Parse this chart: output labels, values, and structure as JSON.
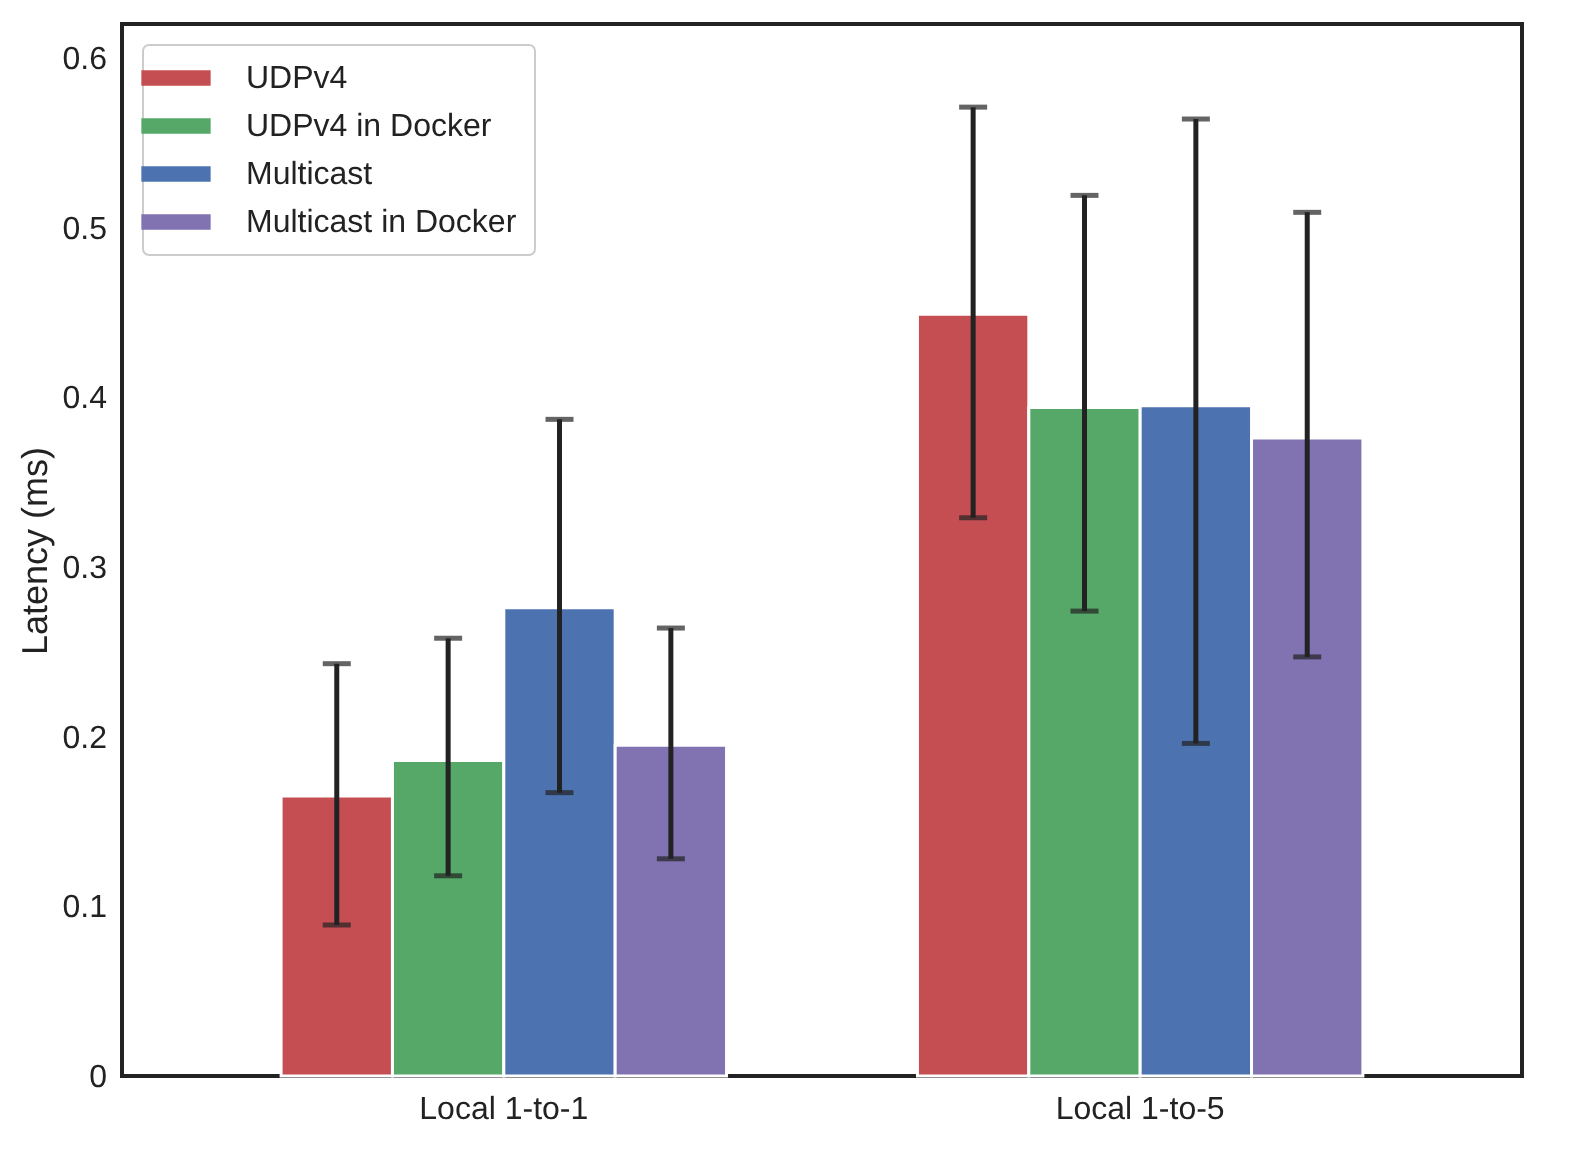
{
  "chart_data": {
    "type": "bar",
    "ylabel": "Latency (ms)",
    "categories": [
      "Local 1-to-1",
      "Local 1-to-5"
    ],
    "series": [
      {
        "name": "UDPv4",
        "color": "#c44e52",
        "values": [
          0.165,
          0.449
        ],
        "errors": [
          [
            0.089,
            0.243
          ],
          [
            0.329,
            0.571
          ]
        ]
      },
      {
        "name": "UDPv4 in Docker",
        "color": "#55a868",
        "values": [
          0.186,
          0.394
        ],
        "errors": [
          [
            0.118,
            0.258
          ],
          [
            0.274,
            0.519
          ]
        ]
      },
      {
        "name": "Multicast",
        "color": "#4c72b0",
        "values": [
          0.276,
          0.395
        ],
        "errors": [
          [
            0.167,
            0.387
          ],
          [
            0.196,
            0.564
          ]
        ]
      },
      {
        "name": "Multicast in Docker",
        "color": "#8172b2",
        "values": [
          0.195,
          0.376
        ],
        "errors": [
          [
            0.128,
            0.264
          ],
          [
            0.247,
            0.509
          ]
        ]
      }
    ],
    "ylim": [
      0,
      0.62
    ],
    "yticks": [
      0,
      0.1,
      0.2,
      0.3,
      0.4,
      0.5,
      0.6
    ],
    "grid": false,
    "legend": "top left"
  }
}
